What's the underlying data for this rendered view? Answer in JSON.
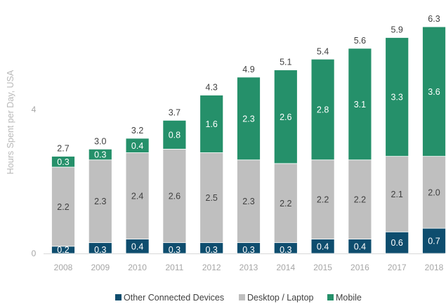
{
  "chart_data": {
    "type": "bar",
    "stacked": true,
    "categories": [
      "2008",
      "2009",
      "2010",
      "2011",
      "2012",
      "2013",
      "2014",
      "2015",
      "2016",
      "2017",
      "2018"
    ],
    "series": [
      {
        "name": "Other Connected Devices",
        "color": "#0e4d6e",
        "label_color": "#ffffff",
        "values": [
          0.2,
          0.3,
          0.4,
          0.3,
          0.3,
          0.3,
          0.3,
          0.4,
          0.4,
          0.6,
          0.7
        ]
      },
      {
        "name": "Desktop / Laptop",
        "color": "#bfbfbf",
        "label_color": "#404040",
        "values": [
          2.2,
          2.3,
          2.4,
          2.6,
          2.5,
          2.3,
          2.2,
          2.2,
          2.2,
          2.1,
          2.0
        ]
      },
      {
        "name": "Mobile",
        "color": "#25906a",
        "label_color": "#ffffff",
        "values": [
          0.3,
          0.3,
          0.4,
          0.8,
          1.6,
          2.3,
          2.6,
          2.8,
          3.1,
          3.3,
          3.6
        ]
      }
    ],
    "totals": [
      2.7,
      3.0,
      3.2,
      3.7,
      4.3,
      4.9,
      5.1,
      5.4,
      5.6,
      5.9,
      6.3
    ],
    "ylabel": "Hours Spent per Day, USA",
    "yticks": [
      0,
      4
    ],
    "ylim": [
      0,
      7
    ],
    "grid": false,
    "legend_position": "bottom"
  }
}
